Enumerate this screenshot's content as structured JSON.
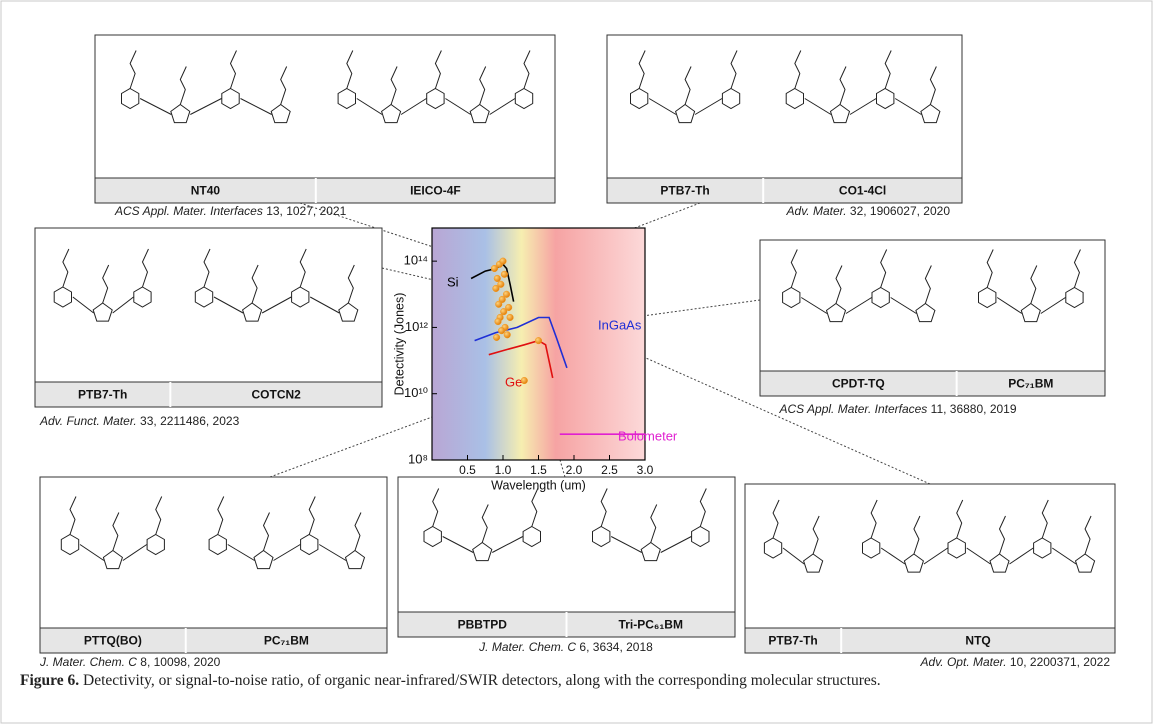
{
  "panels": [
    {
      "labels": [
        "NT40",
        "IEICO-4F"
      ],
      "citation": {
        "journal": "ACS Appl. Mater. Interfaces",
        "ref": "13, 1027, 2021"
      }
    },
    {
      "labels": [
        "PTB7-Th",
        "CO1-4Cl"
      ],
      "citation": {
        "journal": "Adv. Mater.",
        "ref": "32, 1906027, 2020"
      }
    },
    {
      "labels": [
        "PTB7-Th",
        "COTCN2"
      ],
      "citation": {
        "journal": "Adv. Funct. Mater.",
        "ref": "33, 2211486, 2023"
      }
    },
    {
      "labels": [
        "CPDT-TQ",
        "PC₇₁BM"
      ],
      "citation": {
        "journal": "ACS Appl. Mater. Interfaces",
        "ref": "11, 36880, 2019"
      }
    },
    {
      "labels": [
        "PTTQ(BO)",
        "PC₇₁BM"
      ],
      "citation": {
        "journal": "J. Mater. Chem. C",
        "ref": "8, 10098, 2020"
      }
    },
    {
      "labels": [
        "PBBTPD",
        "Tri-PC₆₁BM"
      ],
      "citation": {
        "journal": "J. Mater. Chem. C",
        "ref": "6, 3634, 2018"
      }
    },
    {
      "labels": [
        "PTB7-Th",
        "NTQ"
      ],
      "citation": {
        "journal": "Adv. Opt. Mater.",
        "ref": "10, 2200371, 2022"
      }
    }
  ],
  "chart_data": {
    "type": "line",
    "x_label": "Wavelength (um)",
    "y_label": "Detectivity (Jones)",
    "xlim": [
      0,
      3.0
    ],
    "xticks": [
      0.5,
      {
        "value": 1,
        "label": "1.0"
      },
      1.5,
      {
        "value": 2,
        "label": "2.0"
      },
      2.5,
      {
        "value": 3,
        "label": "3.0"
      }
    ],
    "ylim": [
      100000000.0,
      1000000000000000.0
    ],
    "log_y": true,
    "yticks": [
      {
        "value": 100000000.0,
        "label": "10⁸"
      },
      {
        "value": 10000000000.0,
        "label": "10¹⁰"
      },
      {
        "value": 1000000000000.0,
        "label": "10¹²"
      },
      {
        "value": 100000000000000.0,
        "label": "10¹⁴"
      }
    ],
    "series": [
      {
        "name": "Si",
        "color": "#000000",
        "x": [
          0.55,
          0.75,
          0.9,
          1.0,
          1.05,
          1.1,
          1.15
        ],
        "values": [
          30000000000000.0,
          50000000000000.0,
          60000000000000.0,
          80000000000000.0,
          60000000000000.0,
          20000000000000.0,
          6000000000000.0
        ]
      },
      {
        "name": "InGaAs",
        "color": "#1f2fd6",
        "x": [
          0.6,
          0.9,
          1.2,
          1.5,
          1.65,
          1.75,
          1.9
        ],
        "values": [
          400000000000.0,
          700000000000.0,
          1000000000000.0,
          2000000000000.0,
          2000000000000.0,
          500000000000.0,
          60000000000.0
        ]
      },
      {
        "name": "Ge",
        "color": "#e01010",
        "x": [
          0.8,
          1.0,
          1.3,
          1.5,
          1.6,
          1.7
        ],
        "values": [
          150000000000.0,
          200000000000.0,
          300000000000.0,
          400000000000.0,
          300000000000.0,
          30000000000.0
        ]
      },
      {
        "name": "Bolometer",
        "color": "#e020d0",
        "x": [
          1.8,
          3.0
        ],
        "values": [
          600000000.0,
          600000000.0
        ]
      }
    ],
    "points": {
      "color": "#f39a22",
      "x": [
        0.88,
        0.95,
        1.0,
        0.92,
        1.02,
        0.97,
        0.9,
        1.05,
        0.99,
        0.94,
        1.08,
        1.01,
        0.96,
        1.1,
        0.93,
        1.03,
        0.98,
        1.06,
        0.91,
        1.5,
        1.3
      ],
      "y": [
        60000000000000.0,
        80000000000000.0,
        100000000000000.0,
        30000000000000.0,
        40000000000000.0,
        20000000000000.0,
        15000000000000.0,
        10000000000000.0,
        7000000000000.0,
        5000000000000.0,
        4000000000000.0,
        3000000000000.0,
        2000000000000.0,
        2000000000000.0,
        1500000000000.0,
        1000000000000.0,
        800000000000.0,
        600000000000.0,
        500000000000.0,
        400000000000.0,
        25000000000.0
      ]
    }
  },
  "caption": {
    "label": "Figure 6.",
    "text": "Detectivity, or signal-to-noise ratio, of organic near-infrared/SWIR detectors, along with the corresponding molecular structures."
  }
}
